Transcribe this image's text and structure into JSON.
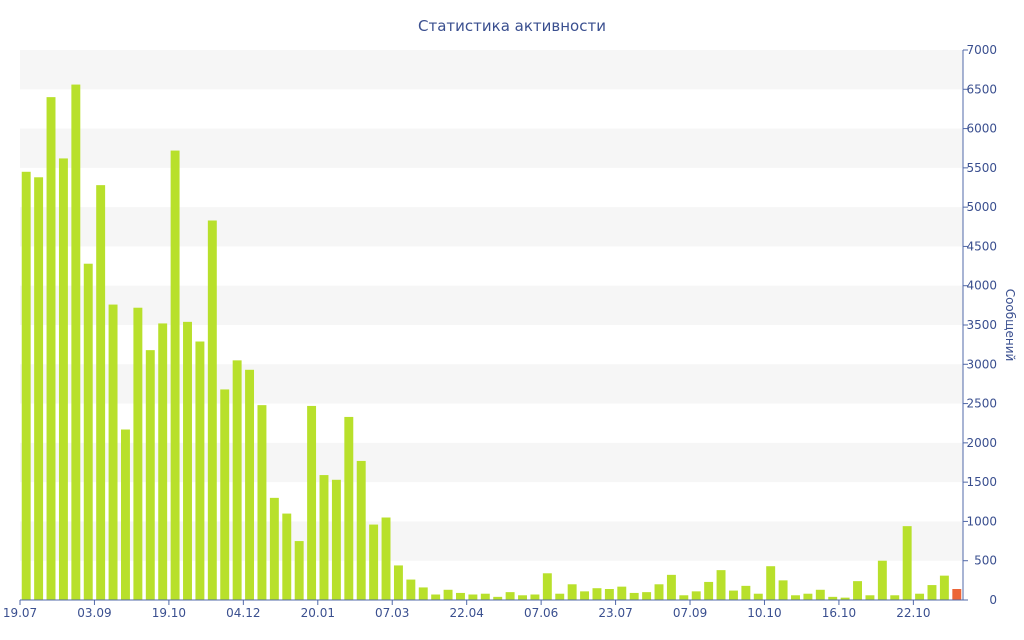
{
  "chart_data": {
    "type": "bar",
    "title": "Статистика активности",
    "xlabel": "",
    "ylabel": "Сообщений",
    "ylim": [
      0,
      7000
    ],
    "y_ticks": [
      0,
      500,
      1000,
      1500,
      2000,
      2500,
      3000,
      3500,
      4000,
      4500,
      5000,
      5500,
      6000,
      6500,
      7000
    ],
    "x_tick_labels": [
      {
        "index": 0,
        "label": "19.07"
      },
      {
        "index": 6,
        "label": "03.09"
      },
      {
        "index": 12,
        "label": "19.10"
      },
      {
        "index": 18,
        "label": "04.12"
      },
      {
        "index": 24,
        "label": "20.01"
      },
      {
        "index": 30,
        "label": "07.03"
      },
      {
        "index": 36,
        "label": "22.04"
      },
      {
        "index": 42,
        "label": "07.06"
      },
      {
        "index": 48,
        "label": "23.07"
      },
      {
        "index": 54,
        "label": "07.09"
      },
      {
        "index": 60,
        "label": "10.10"
      },
      {
        "index": 66,
        "label": "16.10"
      },
      {
        "index": 72,
        "label": "22.10"
      }
    ],
    "values": [
      5450,
      5380,
      6400,
      5620,
      6560,
      4280,
      5280,
      3760,
      2170,
      3720,
      3180,
      3520,
      5720,
      3540,
      3290,
      4830,
      2680,
      3050,
      2930,
      2480,
      1300,
      1100,
      750,
      2470,
      1590,
      1530,
      2330,
      1770,
      960,
      1050,
      440,
      260,
      160,
      70,
      130,
      90,
      70,
      80,
      40,
      100,
      60,
      70,
      340,
      80,
      200,
      110,
      150,
      140,
      170,
      90,
      100,
      200,
      320,
      60,
      110,
      230,
      380,
      120,
      180,
      80,
      430,
      250,
      60,
      80,
      130,
      40,
      30,
      240,
      60,
      500,
      60,
      940,
      80,
      190,
      310,
      140
    ],
    "highlight_index": 75,
    "colors": {
      "bar": "#b8e02b",
      "highlight": "#ec6638",
      "text": "#3a4f8f",
      "band": "#f6f6f6",
      "axis": "#5068a8"
    },
    "grid": "alternating bands",
    "legend": "none"
  }
}
